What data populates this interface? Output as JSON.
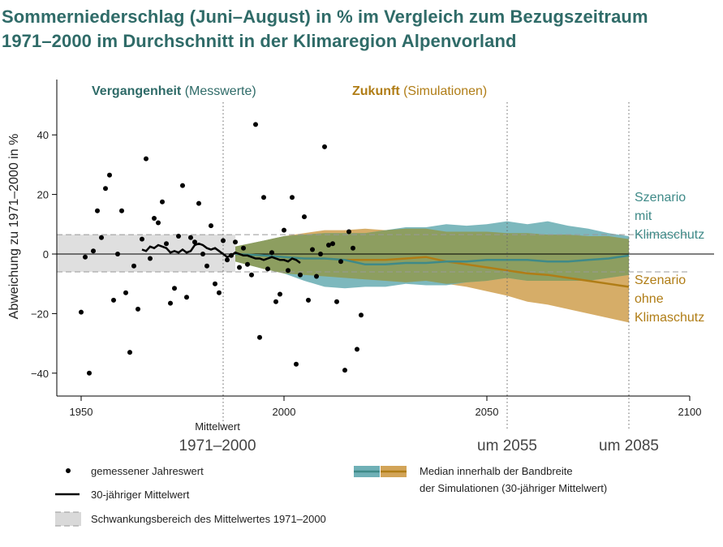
{
  "title_line1": "Sommerniederschlag (Juni–August) in % im Vergleich zum Bezugszeitraum",
  "title_line2": "1971–2000 im Durchschnitt in der Klimaregion Alpenvorland",
  "colors": {
    "title": "#2f6b68",
    "teal": "#3f8a88",
    "teal_band": "#6fb0b6",
    "gold": "#b07d16",
    "gold_band": "#d2a458",
    "overlap_band": "#8e9d5c",
    "grey_band": "#d9d9d9"
  },
  "chart_data": {
    "type": "line",
    "ylabel": "Abweichung zu 1971–2000 in %",
    "xlim": [
      1945,
      2100
    ],
    "ylim": [
      -47,
      57
    ],
    "xticks": [
      1950,
      2000,
      2050,
      2100
    ],
    "yticks": [
      40,
      20,
      0,
      -20,
      -40
    ],
    "ytick_labels": [
      "40",
      "20",
      "0",
      "−20",
      "−40"
    ],
    "period_labels": {
      "past_bold": "Vergangenheit",
      "past_rest": " (Messwerte)",
      "future_bold": "Zukunft",
      "future_rest": " (Simulationen)"
    },
    "reference_marks": [
      {
        "x": 1985,
        "label_small": "Mittelwert",
        "label_big": "1971–2000"
      },
      {
        "x": 2055,
        "label_big": "um 2055"
      },
      {
        "x": 2085,
        "label_big": "um 2085"
      }
    ],
    "reference_band": [
      -6,
      6.5
    ],
    "scatter_annual": [
      [
        1950,
        -19.5
      ],
      [
        1951,
        -1
      ],
      [
        1952,
        -40
      ],
      [
        1953,
        1
      ],
      [
        1954,
        14.5
      ],
      [
        1955,
        5.5
      ],
      [
        1956,
        22
      ],
      [
        1957,
        26.5
      ],
      [
        1958,
        -15.5
      ],
      [
        1959,
        0
      ],
      [
        1960,
        14.5
      ],
      [
        1961,
        -13
      ],
      [
        1962,
        -33
      ],
      [
        1963,
        -4
      ],
      [
        1964,
        -18.5
      ],
      [
        1965,
        5
      ],
      [
        1966,
        32
      ],
      [
        1967,
        -1.5
      ],
      [
        1968,
        12
      ],
      [
        1969,
        10.5
      ],
      [
        1970,
        17.5
      ],
      [
        1971,
        3.5
      ],
      [
        1972,
        -16.5
      ],
      [
        1973,
        -11.5
      ],
      [
        1974,
        6
      ],
      [
        1975,
        23
      ],
      [
        1976,
        -14.5
      ],
      [
        1977,
        5.5
      ],
      [
        1978,
        4
      ],
      [
        1979,
        17
      ],
      [
        1980,
        0
      ],
      [
        1981,
        -4
      ],
      [
        1982,
        9.5
      ],
      [
        1983,
        -10
      ],
      [
        1984,
        -13
      ],
      [
        1985,
        4.5
      ],
      [
        1986,
        -2
      ],
      [
        1987,
        -0.5
      ],
      [
        1988,
        4
      ],
      [
        1989,
        -4.5
      ],
      [
        1990,
        2
      ],
      [
        1991,
        -3.5
      ],
      [
        1992,
        -7
      ],
      [
        1993,
        43.5
      ],
      [
        1994,
        -28
      ],
      [
        1995,
        19
      ],
      [
        1996,
        -5
      ],
      [
        1997,
        0.5
      ],
      [
        1998,
        -16
      ],
      [
        1999,
        -13.5
      ],
      [
        2000,
        8
      ],
      [
        2001,
        -5.5
      ],
      [
        2002,
        19
      ],
      [
        2003,
        -37
      ],
      [
        2004,
        -7
      ],
      [
        2005,
        12.5
      ],
      [
        2006,
        -15.5
      ],
      [
        2007,
        1.5
      ],
      [
        2008,
        -7.5
      ],
      [
        2009,
        0
      ],
      [
        2010,
        36
      ],
      [
        2011,
        3
      ],
      [
        2012,
        3.5
      ],
      [
        2013,
        -16
      ],
      [
        2014,
        -2.5
      ],
      [
        2015,
        -39
      ],
      [
        2016,
        7.5
      ],
      [
        2017,
        2
      ],
      [
        2018,
        -32
      ],
      [
        2019,
        -20.5
      ]
    ],
    "mean_30yr": [
      [
        1965,
        1.5
      ],
      [
        1966,
        1
      ],
      [
        1967,
        2.5
      ],
      [
        1968,
        2
      ],
      [
        1969,
        3
      ],
      [
        1970,
        2.5
      ],
      [
        1971,
        2
      ],
      [
        1972,
        0.5
      ],
      [
        1973,
        1
      ],
      [
        1974,
        0.5
      ],
      [
        1975,
        1.5
      ],
      [
        1976,
        0.5
      ],
      [
        1977,
        1
      ],
      [
        1978,
        3
      ],
      [
        1979,
        3.5
      ],
      [
        1980,
        3
      ],
      [
        1981,
        2
      ],
      [
        1982,
        1.5
      ],
      [
        1983,
        2
      ],
      [
        1984,
        1
      ],
      [
        1985,
        0
      ],
      [
        1986,
        -1
      ],
      [
        1987,
        -0.5
      ],
      [
        1988,
        0.5
      ],
      [
        1989,
        0
      ],
      [
        1990,
        -0.5
      ],
      [
        1991,
        -0.5
      ],
      [
        1992,
        -1
      ],
      [
        1993,
        -1.5
      ],
      [
        1994,
        -1.5
      ],
      [
        1995,
        -2
      ],
      [
        1996,
        -1.5
      ],
      [
        1997,
        -1
      ],
      [
        1998,
        -1.5
      ],
      [
        1999,
        -2
      ],
      [
        2000,
        -2
      ],
      [
        2001,
        -2.5
      ],
      [
        2002,
        -1.5
      ],
      [
        2003,
        -2
      ],
      [
        2004,
        -3
      ]
    ],
    "series": [
      {
        "name": "Szenario mit Klimaschutz",
        "label_lines": [
          "Szenario",
          "mit",
          "Klimaschutz"
        ],
        "x": [
          1988,
          1995,
          2000,
          2005,
          2010,
          2015,
          2020,
          2025,
          2030,
          2035,
          2040,
          2045,
          2050,
          2055,
          2060,
          2065,
          2070,
          2075,
          2080,
          2085
        ],
        "median": [
          0,
          -0.5,
          -1,
          -1.5,
          -1.5,
          -2,
          -3.5,
          -3.5,
          -3,
          -3,
          -2.5,
          -2.5,
          -2,
          -2,
          -2,
          -2.5,
          -2.5,
          -2,
          -1.5,
          -0.5
        ],
        "upper": [
          2.5,
          4.5,
          6,
          6.5,
          7,
          7,
          7,
          8,
          9,
          9,
          10,
          9.5,
          10,
          11,
          10,
          11,
          9.5,
          8.5,
          7,
          6
        ],
        "lower": [
          -2.5,
          -5,
          -6.5,
          -9,
          -11,
          -11.5,
          -11,
          -11,
          -10,
          -10.5,
          -10.5,
          -9.5,
          -9,
          -8,
          -9,
          -9,
          -9,
          -9,
          -8,
          -7
        ]
      },
      {
        "name": "Szenario ohne Klimaschutz",
        "label_lines": [
          "Szenario",
          "ohne",
          "Klimaschutz"
        ],
        "x": [
          1988,
          1995,
          2000,
          2005,
          2010,
          2015,
          2020,
          2025,
          2030,
          2035,
          2040,
          2045,
          2050,
          2055,
          2060,
          2065,
          2070,
          2075,
          2080,
          2085
        ],
        "median": [
          0,
          -0.5,
          -1,
          -1.5,
          -1.5,
          -2,
          -2,
          -2,
          -1.5,
          -1,
          -2.5,
          -3.5,
          -4.5,
          -5.5,
          -6.5,
          -7,
          -8,
          -9,
          -10,
          -11
        ],
        "upper": [
          2.5,
          4.5,
          6,
          7,
          8,
          8,
          8.5,
          8,
          8.5,
          8.5,
          7.5,
          7.5,
          7.5,
          7,
          7,
          6.5,
          6.5,
          6,
          6,
          5
        ],
        "lower": [
          -2.5,
          -5,
          -6.5,
          -7,
          -7.5,
          -8,
          -8.5,
          -9,
          -9.5,
          -9,
          -10,
          -11,
          -12.5,
          -14,
          -16,
          -17,
          -18.5,
          -20,
          -21.5,
          -23
        ]
      }
    ],
    "legend": {
      "scatter_label": "gemessener Jahreswert",
      "mean_label": "30-jähriger Mittelwert",
      "band_label": "Schwankungsbereich des Mittelwertes 1971–2000",
      "median_label_line1": "Median innerhalb der Bandbreite",
      "median_label_line2": "der Simulationen (30-jähriger Mittelwert)"
    }
  }
}
